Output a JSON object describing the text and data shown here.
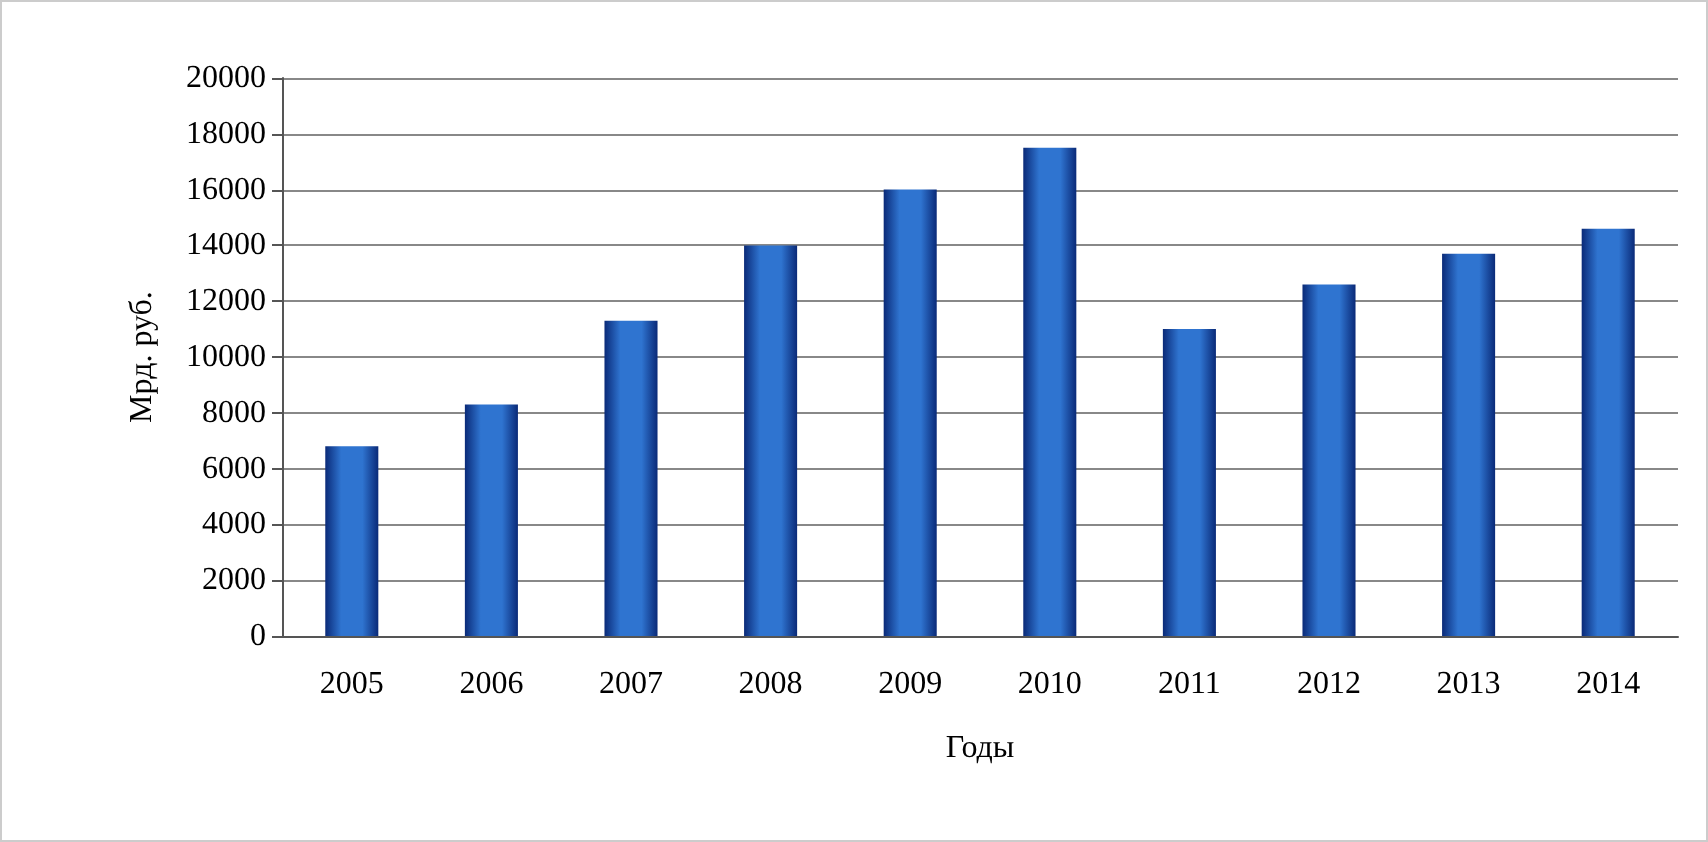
{
  "chart_data": {
    "type": "bar",
    "xlabel": "Годы",
    "ylabel": "Мрд. руб.",
    "categories": [
      "2005",
      "2006",
      "2007",
      "2008",
      "2009",
      "2010",
      "2011",
      "2012",
      "2013",
      "2014"
    ],
    "values": [
      6800,
      8300,
      11300,
      14000,
      16000,
      17500,
      11000,
      12600,
      13700,
      14600
    ],
    "color": "#2f74d0",
    "ylim": [
      0,
      20000
    ],
    "yticks": [
      0,
      2000,
      4000,
      6000,
      8000,
      10000,
      12000,
      14000,
      16000,
      18000,
      20000
    ],
    "grid": "y"
  }
}
